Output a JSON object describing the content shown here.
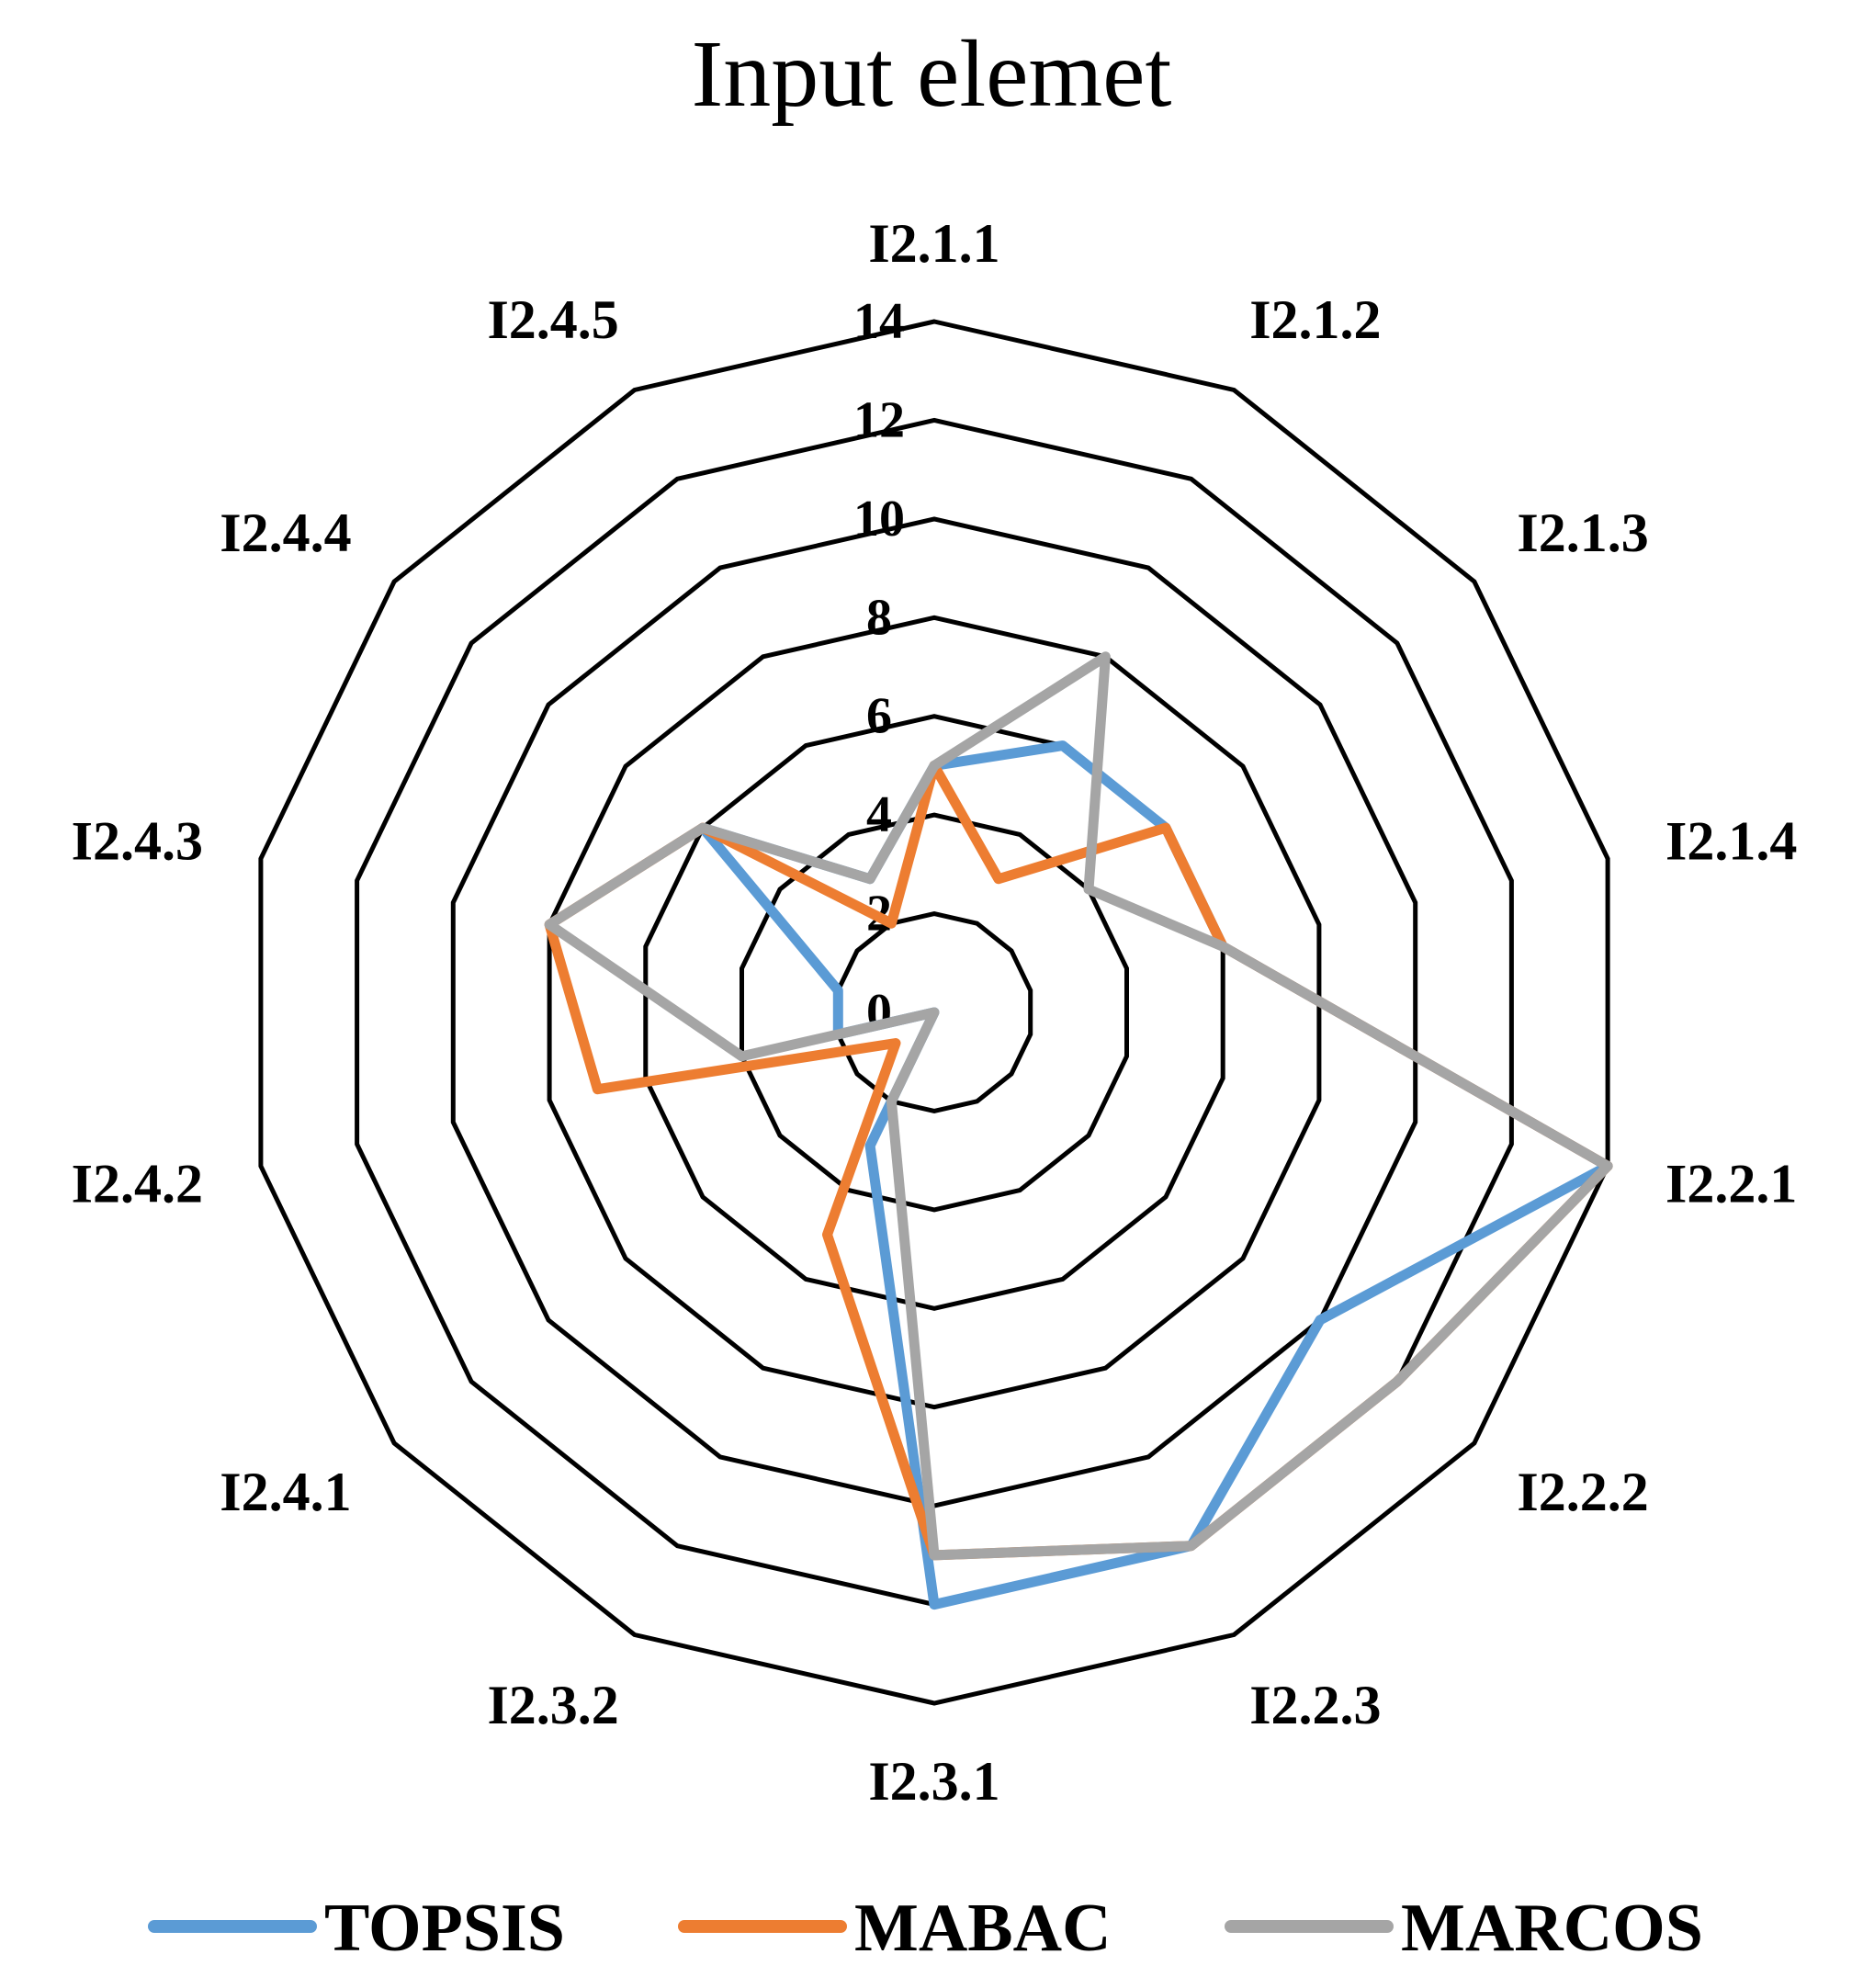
{
  "chart_data": {
    "type": "radar",
    "title": "Input elemet",
    "categories": [
      "I2.1.1",
      "I2.1.2",
      "I2.1.3",
      "I2.1.4",
      "I2.2.1",
      "I2.2.2",
      "I2.2.3",
      "I2.3.1",
      "I2.3.2",
      "I2.4.1",
      "I2.4.2",
      "I2.4.3",
      "I2.4.4",
      "I2.4.5"
    ],
    "radial_ticks": [
      0,
      2,
      4,
      6,
      8,
      10,
      12,
      14
    ],
    "rlim": [
      0,
      14
    ],
    "series": [
      {
        "name": "TOPSIS",
        "color": "#5B9BD5",
        "values": [
          5,
          6,
          6,
          6,
          14,
          10,
          12,
          12,
          3,
          0,
          2,
          2,
          6,
          3
        ]
      },
      {
        "name": "MABAC",
        "color": "#ED7D31",
        "values": [
          5,
          3,
          6,
          6,
          14,
          12,
          12,
          11,
          5,
          1,
          7,
          8,
          6,
          2
        ]
      },
      {
        "name": "MARCOS",
        "color": "#A5A5A5",
        "values": [
          5,
          8,
          4,
          6,
          14,
          12,
          12,
          11,
          2,
          0,
          4,
          8,
          6,
          3
        ]
      }
    ],
    "legend_position": "bottom",
    "grid": true
  }
}
